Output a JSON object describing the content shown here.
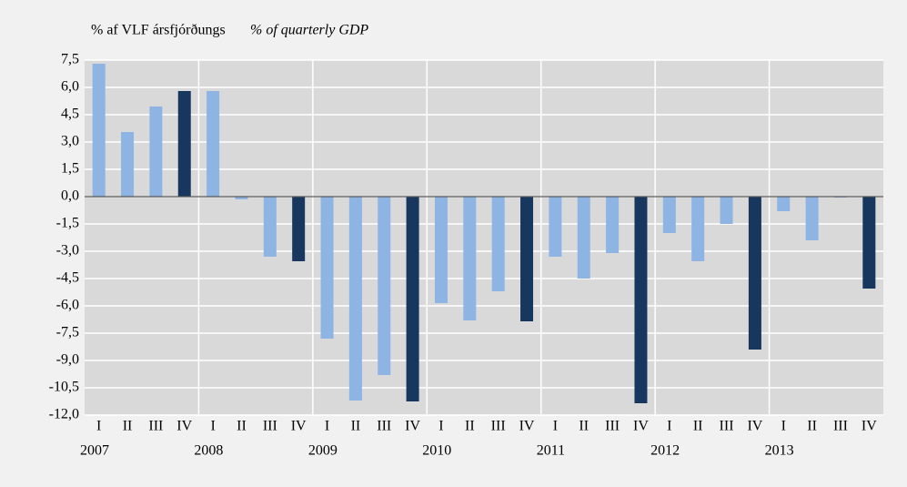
{
  "chart_data": {
    "type": "bar",
    "title": "% af VLF ársfjórðungs",
    "subtitle": "% of quarterly GDP",
    "categories": [
      "I",
      "II",
      "III",
      "IV",
      "I",
      "II",
      "III",
      "IV",
      "I",
      "II",
      "III",
      "IV",
      "I",
      "II",
      "III",
      "IV",
      "I",
      "II",
      "III",
      "IV",
      "I",
      "II",
      "III",
      "IV",
      "I",
      "II",
      "III",
      "IV"
    ],
    "years": [
      "2007",
      "2008",
      "2009",
      "2010",
      "2011",
      "2012",
      "2013"
    ],
    "values": [
      7.3,
      3.55,
      4.95,
      5.8,
      5.8,
      -0.15,
      -3.3,
      -3.55,
      -7.8,
      -11.2,
      -9.8,
      -11.25,
      -5.85,
      -6.8,
      -5.2,
      -6.85,
      -3.3,
      -4.5,
      -3.1,
      -11.35,
      -2.0,
      -3.55,
      -1.5,
      -8.4,
      -0.8,
      -2.4,
      -0.05,
      -5.05
    ],
    "colors": [
      "#8db4e2",
      "#8db4e2",
      "#8db4e2",
      "#17375e",
      "#8db4e2",
      "#8db4e2",
      "#8db4e2",
      "#17375e",
      "#8db4e2",
      "#8db4e2",
      "#8db4e2",
      "#17375e",
      "#8db4e2",
      "#8db4e2",
      "#8db4e2",
      "#17375e",
      "#8db4e2",
      "#8db4e2",
      "#8db4e2",
      "#17375e",
      "#8db4e2",
      "#8db4e2",
      "#8db4e2",
      "#17375e",
      "#8db4e2",
      "#8db4e2",
      "#8db4e2",
      "#17375e"
    ],
    "ylim": [
      -12,
      7.5
    ],
    "yticks": [
      {
        "value": -12,
        "label": "-12,0"
      },
      {
        "value": -10.5,
        "label": "-10,5"
      },
      {
        "value": -9,
        "label": "-9,0"
      },
      {
        "value": -7.5,
        "label": "-7,5"
      },
      {
        "value": -6,
        "label": "-6,0"
      },
      {
        "value": -4.5,
        "label": "-4,5"
      },
      {
        "value": -3,
        "label": "-3,0"
      },
      {
        "value": -1.5,
        "label": "-1,5"
      },
      {
        "value": 0,
        "label": "0,0"
      },
      {
        "value": 1.5,
        "label": "1,5"
      },
      {
        "value": 3,
        "label": "3,0"
      },
      {
        "value": 4.5,
        "label": "4,5"
      },
      {
        "value": 6,
        "label": "6,0"
      },
      {
        "value": 7.5,
        "label": "7,5"
      }
    ],
    "grid": true
  }
}
